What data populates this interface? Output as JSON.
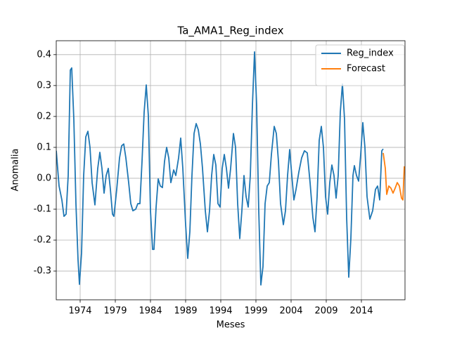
{
  "chart_data": {
    "type": "line",
    "title": "Ta_AMA1_Reg_index",
    "xlabel": "Meses",
    "ylabel": "Anomalia",
    "xlim": [
      1970.6,
      2020.2
    ],
    "ylim": [
      -0.393,
      0.445
    ],
    "xticks": [
      1974,
      1979,
      1984,
      1989,
      1994,
      1999,
      2004,
      2009,
      2014
    ],
    "yticks": [
      -0.3,
      -0.2,
      -0.1,
      {
        "value": 0,
        "label": "0.0"
      },
      0.1,
      0.2,
      0.3,
      0.4
    ],
    "grid": true,
    "legend": "upper right",
    "series": [
      {
        "name": "Reg_index",
        "color": "#1f77b4",
        "x": [
          1970.6,
          1971.0,
          1971.4,
          1971.7,
          1972.0,
          1972.3,
          1972.6,
          1972.8,
          1973.1,
          1973.4,
          1973.7,
          1973.9,
          1974.2,
          1974.5,
          1974.8,
          1975.1,
          1975.4,
          1975.7,
          1976.1,
          1976.5,
          1976.8,
          1977.1,
          1977.4,
          1977.7,
          1978.0,
          1978.3,
          1978.6,
          1978.8,
          1979.2,
          1979.6,
          1979.9,
          1980.2,
          1980.5,
          1980.9,
          1981.2,
          1981.5,
          1981.9,
          1982.2,
          1982.5,
          1982.8,
          1983.1,
          1983.4,
          1983.7,
          1984.0,
          1984.3,
          1984.5,
          1984.8,
          1985.1,
          1985.4,
          1985.7,
          1986.0,
          1986.3,
          1986.6,
          1986.9,
          1987.3,
          1987.6,
          1988.0,
          1988.3,
          1988.6,
          1989.0,
          1989.3,
          1989.6,
          1989.9,
          1990.2,
          1990.5,
          1990.8,
          1991.1,
          1991.4,
          1991.8,
          1992.1,
          1992.4,
          1992.7,
          1993.0,
          1993.3,
          1993.6,
          1993.9,
          1994.2,
          1994.5,
          1994.8,
          1995.1,
          1995.4,
          1995.8,
          1996.1,
          1996.4,
          1996.7,
          1997.0,
          1997.3,
          1997.6,
          1997.9,
          1998.2,
          1998.5,
          1998.8,
          1999.1,
          1999.4,
          1999.7,
          2000.0,
          2000.3,
          2000.6,
          2000.9,
          2001.2,
          2001.6,
          2001.9,
          2002.2,
          2002.5,
          2002.9,
          2003.2,
          2003.5,
          2003.8,
          2004.1,
          2004.4,
          2004.7,
          2005.1,
          2005.5,
          2005.9,
          2006.3,
          2006.7,
          2007.1,
          2007.4,
          2007.7,
          2008.0,
          2008.3,
          2008.6,
          2008.9,
          2009.2,
          2009.5,
          2009.8,
          2010.1,
          2010.4,
          2010.7,
          2011.0,
          2011.3,
          2011.6,
          2011.9,
          2012.2,
          2012.5,
          2012.8,
          2013.0,
          2013.3,
          2013.6,
          2013.9,
          2014.2,
          2014.5,
          2014.8,
          2015.2,
          2015.6,
          2016.0,
          2016.3,
          2016.6,
          2016.9,
          2017.1
        ],
        "values": [
          0.089,
          -0.025,
          -0.07,
          -0.123,
          -0.116,
          0.009,
          0.35,
          0.357,
          0.191,
          -0.082,
          -0.264,
          -0.343,
          -0.241,
          0.009,
          0.134,
          0.152,
          0.1,
          -0.014,
          -0.086,
          0.032,
          0.084,
          0.032,
          -0.048,
          0.009,
          0.032,
          -0.036,
          -0.116,
          -0.123,
          -0.036,
          0.066,
          0.105,
          0.111,
          0.066,
          -0.014,
          -0.082,
          -0.105,
          -0.1,
          -0.082,
          -0.082,
          0.055,
          0.214,
          0.302,
          0.202,
          -0.105,
          -0.23,
          -0.23,
          -0.093,
          -0.002,
          -0.025,
          -0.03,
          0.055,
          0.1,
          0.066,
          -0.014,
          0.027,
          0.009,
          0.066,
          0.13,
          0.032,
          -0.15,
          -0.259,
          -0.173,
          0.009,
          0.145,
          0.177,
          0.157,
          0.111,
          0.032,
          -0.105,
          -0.173,
          -0.105,
          0.009,
          0.077,
          0.043,
          -0.082,
          -0.093,
          0.032,
          0.077,
          0.032,
          -0.032,
          0.032,
          0.145,
          0.1,
          -0.082,
          -0.195,
          -0.105,
          0.009,
          -0.059,
          -0.093,
          0.009,
          0.236,
          0.409,
          0.236,
          -0.105,
          -0.345,
          -0.286,
          -0.082,
          -0.025,
          -0.014,
          0.077,
          0.168,
          0.145,
          0.055,
          -0.082,
          -0.15,
          -0.105,
          0.009,
          0.093,
          0.009,
          -0.07,
          -0.036,
          0.02,
          0.066,
          0.089,
          0.082,
          -0.014,
          -0.127,
          -0.173,
          -0.059,
          0.123,
          0.168,
          0.1,
          -0.059,
          -0.116,
          -0.014,
          0.043,
          0.009,
          -0.064,
          0.009,
          0.214,
          0.305,
          0.191,
          -0.127,
          -0.32,
          -0.195,
          0.009,
          0.041,
          0.009,
          -0.009,
          0.077,
          0.18,
          0.1,
          -0.059,
          -0.132,
          -0.105,
          -0.036,
          -0.025,
          -0.07,
          0.089,
          0.095
        ]
      },
      {
        "name": "Forecast",
        "color": "#ff7f0e",
        "x": [
          2017.1,
          2017.4,
          2017.6,
          2017.9,
          2018.2,
          2018.5,
          2018.8,
          2019.1,
          2019.4,
          2019.7,
          2019.9,
          2020.1
        ],
        "values": [
          0.082,
          0.032,
          -0.052,
          -0.025,
          -0.032,
          -0.048,
          -0.032,
          -0.014,
          -0.025,
          -0.064,
          -0.07,
          0.039
        ]
      }
    ]
  }
}
